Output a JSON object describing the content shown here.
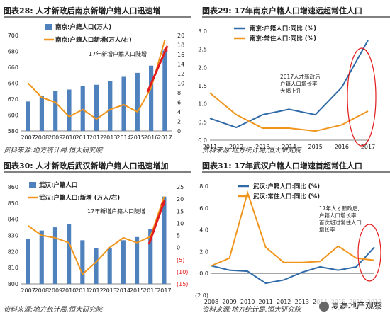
{
  "charts": [
    {
      "title": "图表28:      人才新政后南京新增户籍人口迅速增",
      "source": "资料来源:地方统计局,恒大研究院",
      "annotation": "17年新增户籍人口陡增",
      "legend": [
        "南京:户籍人口(万人)",
        "南京:户籍人口新增(万人/右)"
      ]
    },
    {
      "title": "图表29:    17年南京户籍人口增速远超常住人口",
      "source": "资料来源:地方统计局,恒大研究院",
      "annotation": [
        "2017人才新政后",
        "户籍人口增长率",
        "大幅上升"
      ],
      "legend": [
        "南京:户籍人口:同比 (%)",
        "南京:常住人口:同比 (%)"
      ]
    },
    {
      "title": "图表30:    人才新政后武汉新增户籍人口迅速增加",
      "source": "资料来源:地方统计局,恒大研究院",
      "annotation": "17年新增户籍人口陡增",
      "legend": [
        "武汉:户籍人口",
        "武汉:户籍人口:新增 (万人/右)"
      ]
    },
    {
      "title": "图表31:    17年武汉户籍人口增速首超常住人口",
      "source": "资料来源:地方统计局,恒大研究院",
      "annotation": [
        "17年人才新政后,",
        "户籍人口增长率",
        "首次超过常住人口",
        "增长率"
      ],
      "legend": [
        "武汉:户籍人口:同比 (%)",
        "武汉:常住人口:同比 (%)"
      ]
    }
  ],
  "watermark": "夏磊地产观察",
  "colors": {
    "bar": "#4f81bd",
    "orange": "#f0961e",
    "blue": "#2e6aa8",
    "red": "#e21c1c"
  },
  "chart_data": [
    {
      "type": "bar",
      "categories": [
        "2007",
        "2008",
        "2009",
        "2010",
        "2011",
        "2012",
        "2013",
        "2014",
        "2015",
        "2016",
        "2017"
      ],
      "series": [
        {
          "name": "南京:户籍人口(万人)",
          "type": "bar",
          "axis": "left",
          "values": [
            617,
            624,
            630,
            632,
            636,
            638,
            643,
            648,
            653,
            662,
            681
          ]
        },
        {
          "name": "南京:户籍人口新增(万人/右)",
          "type": "line",
          "axis": "right",
          "values": [
            10,
            7,
            6,
            3,
            4.5,
            2.5,
            4.5,
            5.5,
            4,
            9,
            19
          ]
        }
      ],
      "ylim_left": [
        580,
        700
      ],
      "yticks_left": [
        580,
        600,
        620,
        640,
        660,
        680,
        700
      ],
      "ylim_right": [
        0,
        20
      ],
      "yticks_right": [
        0,
        2,
        4,
        6,
        8,
        10,
        12,
        14,
        16,
        18,
        20
      ]
    },
    {
      "type": "line",
      "categories": [
        "2011",
        "2012",
        "2013",
        "2014",
        "2015",
        "2016",
        "2017"
      ],
      "series": [
        {
          "name": "南京:户籍人口:同比 (%)",
          "values": [
            0.6,
            0.35,
            0.7,
            0.85,
            0.7,
            1.45,
            2.75
          ]
        },
        {
          "name": "南京:常住人口:同比 (%)",
          "values": [
            1.3,
            0.7,
            0.33,
            0.33,
            0.25,
            0.42,
            0.8
          ]
        }
      ],
      "ylim": [
        0,
        3
      ],
      "yticks": [
        0,
        0.5,
        1,
        1.5,
        2,
        2.5,
        3
      ]
    },
    {
      "type": "bar",
      "categories": [
        "2007",
        "2008",
        "2009",
        "2010",
        "2011",
        "2012",
        "2013",
        "2014",
        "2015",
        "2016",
        "2017"
      ],
      "series": [
        {
          "name": "武汉:户籍人口",
          "type": "bar",
          "axis": "left",
          "values": [
            828,
            833,
            835,
            837,
            827,
            822,
            822,
            827,
            829,
            834,
            854
          ]
        },
        {
          "name": "武汉:户籍人口:新增 (万人/右)",
          "type": "line",
          "axis": "right",
          "values": [
            9,
            5,
            4,
            2,
            -11,
            -6,
            0,
            4,
            2,
            4.5,
            21
          ]
        }
      ],
      "ylim_left": [
        800,
        860
      ],
      "yticks_left": [
        800,
        810,
        820,
        830,
        840,
        850,
        860
      ],
      "ylim_right": [
        -15,
        25
      ],
      "yticks_right": [
        -15,
        -10,
        -5,
        0,
        5,
        10,
        15,
        20,
        25
      ]
    },
    {
      "type": "line",
      "categories": [
        "2008",
        "2009",
        "2010",
        "2011",
        "2012",
        "2013",
        "2014",
        "2015",
        "2016",
        "2017"
      ],
      "series": [
        {
          "name": "武汉:户籍人口:同比 (%)",
          "values": [
            0.7,
            0.3,
            0.2,
            -0.9,
            -0.6,
            0.1,
            0.6,
            0.3,
            0.6,
            2.4
          ]
        },
        {
          "name": "武汉:常住人口:同比 (%)",
          "values": [
            0.7,
            1.4,
            7.4,
            2.4,
            1.0,
            1.0,
            1.1,
            2.5,
            1.4,
            1.2
          ]
        }
      ],
      "ylim": [
        -2,
        8
      ],
      "yticks": [
        -2,
        0,
        2,
        4,
        6,
        8
      ]
    }
  ]
}
